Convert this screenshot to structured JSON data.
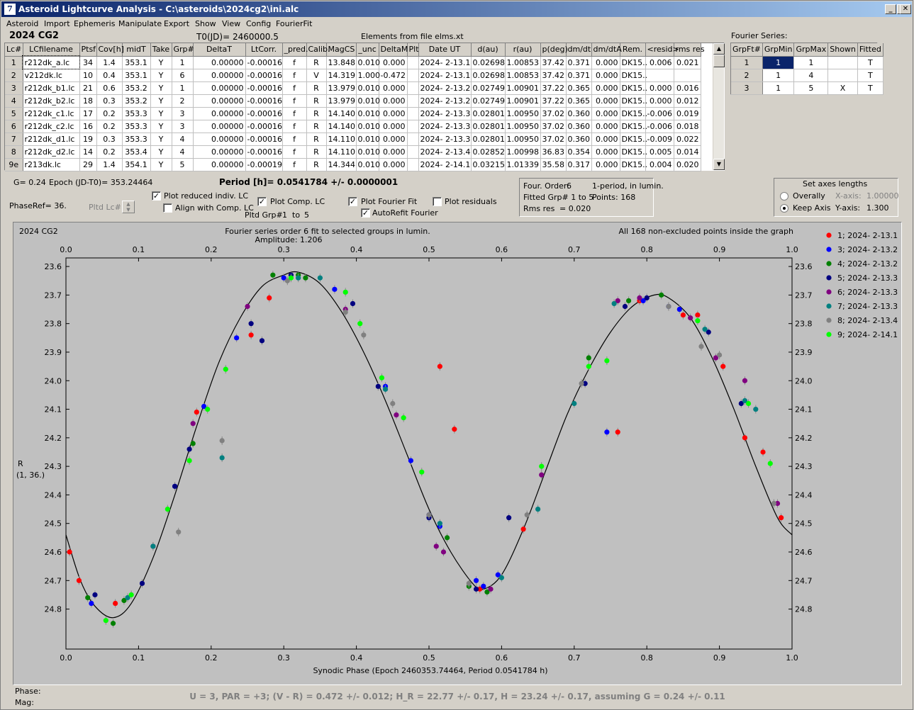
{
  "window": {
    "title": "Asteroid Lightcurve Analysis - C:\\asteroids\\2024cg2\\ini.alc",
    "icon_label": "7",
    "buttons": {
      "minimize": "_",
      "maximize": "□",
      "close": "✕"
    }
  },
  "menu": [
    "Asteroid",
    "Import",
    "Ephemeris",
    "Manipulate",
    "Export",
    "Show",
    "View",
    "Config",
    "FourierFit"
  ],
  "header": {
    "asteroid": "2024 CG2",
    "t0": "T0(JD)= 2460000.5",
    "elements": "Elements from file elms.xt",
    "fourier_series_label": "Fourier Series:"
  },
  "lc_table": {
    "columns": [
      "Lc#",
      "LCfilename",
      "Ptsf",
      "Cov[h]",
      "midT",
      "Take",
      "Grp#",
      "DeltaT",
      "LtCorr.",
      "_pred.",
      "Calib.",
      "MagCS",
      "_unc",
      "DeltaM",
      "Plt",
      "Date UT",
      "d(au)",
      "r(au)",
      "p(deg)",
      "dm/dt",
      "dm/dtA",
      "Rem.",
      "<resid>",
      "rms res"
    ],
    "rows": [
      [
        "1",
        "r212dk_a.lc",
        "34",
        "1.4",
        "353.1",
        "Y",
        "1",
        "0.00000",
        "-0.00016",
        "f",
        "R",
        "13.848",
        "0.010",
        "0.000",
        "",
        "2024- 2-13.1",
        "0.02698",
        "1.00853",
        "37.42",
        "0.371",
        "0.000",
        "DK15..",
        "0.006",
        "0.021"
      ],
      [
        "2",
        "v212dk.lc",
        "10",
        "0.4",
        "353.1",
        "Y",
        "6",
        "0.00000",
        "-0.00016",
        "f",
        "V",
        "14.319",
        "1.000",
        "-0.472",
        "",
        "2024- 2-13.1",
        "0.02698",
        "1.00853",
        "37.42",
        "0.371",
        "0.000",
        "DK15..",
        "",
        ""
      ],
      [
        "3",
        "r212dk_b1.lc",
        "21",
        "0.6",
        "353.2",
        "Y",
        "1",
        "0.00000",
        "-0.00016",
        "f",
        "R",
        "13.979",
        "0.010",
        "0.000",
        "",
        "2024- 2-13.2",
        "0.02749",
        "1.00901",
        "37.22",
        "0.365",
        "0.000",
        "DK15..",
        "0.000",
        "0.016"
      ],
      [
        "4",
        "r212dk_b2.lc",
        "18",
        "0.3",
        "353.2",
        "Y",
        "2",
        "0.00000",
        "-0.00016",
        "f",
        "R",
        "13.979",
        "0.010",
        "0.000",
        "",
        "2024- 2-13.2",
        "0.02749",
        "1.00901",
        "37.22",
        "0.365",
        "0.000",
        "DK15..",
        "0.000",
        "0.012"
      ],
      [
        "5",
        "r212dk_c1.lc",
        "17",
        "0.2",
        "353.3",
        "Y",
        "3",
        "0.00000",
        "-0.00016",
        "f",
        "R",
        "14.140",
        "0.010",
        "0.000",
        "",
        "2024- 2-13.3",
        "0.02801",
        "1.00950",
        "37.02",
        "0.360",
        "0.000",
        "DK15..",
        "-0.006",
        "0.019"
      ],
      [
        "6",
        "r212dk_c2.lc",
        "16",
        "0.2",
        "353.3",
        "Y",
        "3",
        "0.00000",
        "-0.00016",
        "f",
        "R",
        "14.140",
        "0.010",
        "0.000",
        "",
        "2024- 2-13.3",
        "0.02801",
        "1.00950",
        "37.02",
        "0.360",
        "0.000",
        "DK15..",
        "-0.006",
        "0.018"
      ],
      [
        "7",
        "r212dk_d1.lc",
        "19",
        "0.3",
        "353.3",
        "Y",
        "4",
        "0.00000",
        "-0.00016",
        "f",
        "R",
        "14.110",
        "0.010",
        "0.000",
        "",
        "2024- 2-13.3",
        "0.02801",
        "1.00950",
        "37.02",
        "0.360",
        "0.000",
        "DK15..",
        "-0.009",
        "0.022"
      ],
      [
        "8",
        "r212dk_d2.lc",
        "14",
        "0.2",
        "353.4",
        "Y",
        "4",
        "0.00000",
        "-0.00016",
        "f",
        "R",
        "14.110",
        "0.010",
        "0.000",
        "",
        "2024- 2-13.4",
        "0.02852",
        "1.00998",
        "36.83",
        "0.354",
        "0.000",
        "DK15..",
        "0.005",
        "0.014"
      ],
      [
        "9e",
        "r213dk.lc",
        "29",
        "1.4",
        "354.1",
        "Y",
        "5",
        "0.00000",
        "-0.00019",
        "f",
        "R",
        "14.344",
        "0.010",
        "0.000",
        "",
        "2024- 2-14.1",
        "0.03215",
        "1.01339",
        "35.58",
        "0.317",
        "0.000",
        "DK15..",
        "0.004",
        "0.020"
      ]
    ]
  },
  "fourier_table": {
    "columns": [
      "GrpFt#",
      "GrpMin",
      "GrpMax",
      "Shown",
      "Fitted"
    ],
    "rows": [
      [
        "1",
        "1",
        "1",
        "",
        "T"
      ],
      [
        "2",
        "1",
        "4",
        "",
        "T"
      ],
      [
        "3",
        "1",
        "5",
        "X",
        "T"
      ]
    ]
  },
  "controls": {
    "g_value": "G= 0.24",
    "epoch": "Epoch (JD-T0)= 353.24464",
    "period": "Period [h]= 0.0541784 +/- 0.0000001",
    "phaseref": "PhaseRef= 36.",
    "pltd_lc": "Pltd Lc#:",
    "plot_reduced": "Plot reduced indiv. LC",
    "align_comp": "Align with Comp. LC",
    "plot_comp": "Plot Comp. LC",
    "pltd_grp": "Pltd Grp#",
    "grp_from": "1",
    "grp_to_label": "to",
    "grp_to": "5",
    "plot_fourier": "Plot Fourier Fit",
    "autorefit": "AutoRefit Fourier",
    "plot_residuals": "Plot residuals"
  },
  "fourier_info": {
    "order_label": "Four. Order:",
    "order": "6",
    "mode": "1-period, in lumin.",
    "fitted": "Fitted Grp# 1 to 5",
    "points": "Points: 168",
    "rms_label": "Rms res",
    "rms": "= 0.020"
  },
  "axes_box": {
    "title": "Set axes lengths",
    "overall": "Overally",
    "keep": "Keep Axis",
    "x_label": "X-axis:",
    "x_value": "1.00000",
    "y_label": "Y-axis:",
    "y_value": "1.300"
  },
  "plot_header": {
    "left": "2024 CG2",
    "center1": "Fourier series order 6 fit to selected groups in lumin.",
    "center2": "Amplitude: 1.206",
    "right": "All 168 non-excluded points inside the graph",
    "ylabel1": "R",
    "ylabel2": "(1, 36.)"
  },
  "footer": {
    "phase": "Phase:",
    "mag": "Mag:",
    "status": "U = 3, PAR = +3; (V - R) = 0.472 +/- 0.012; H_R = 22.77 +/- 0.17, H = 23.24 +/- 0.17, assuming G = 0.24 +/- 0.11"
  },
  "chart_data": {
    "type": "scatter",
    "title": "Fourier series order 6 fit to selected groups in lumin.",
    "xlabel": "Synodic Phase (Epoch 2460353.74464, Period 0.0541784 h)",
    "ylabel": "R",
    "xlim": [
      0,
      1
    ],
    "ylim": [
      24.94,
      23.57
    ],
    "xticks": [
      "0.0",
      "0.1",
      "0.2",
      "0.3",
      "0.4",
      "0.5",
      "0.6",
      "0.7",
      "0.8",
      "0.9",
      "1.0"
    ],
    "yticks": [
      "23.6",
      "23.7",
      "23.8",
      "23.9",
      "24.0",
      "24.1",
      "24.2",
      "24.3",
      "24.4",
      "24.5",
      "24.6",
      "24.7",
      "24.8"
    ],
    "fit_curve": {
      "x": [
        0.0,
        0.02,
        0.04,
        0.065,
        0.09,
        0.12,
        0.15,
        0.18,
        0.21,
        0.24,
        0.27,
        0.3,
        0.32,
        0.35,
        0.38,
        0.41,
        0.44,
        0.47,
        0.5,
        0.53,
        0.56,
        0.575,
        0.6,
        0.63,
        0.66,
        0.69,
        0.72,
        0.75,
        0.78,
        0.81,
        0.83,
        0.86,
        0.89,
        0.92,
        0.95,
        0.98,
        1.0
      ],
      "y": [
        24.54,
        24.7,
        24.79,
        24.83,
        24.78,
        24.62,
        24.4,
        24.16,
        23.94,
        23.78,
        23.67,
        23.63,
        23.62,
        23.66,
        23.76,
        23.9,
        24.07,
        24.26,
        24.45,
        24.6,
        24.71,
        24.73,
        24.68,
        24.52,
        24.32,
        24.12,
        23.96,
        23.83,
        23.74,
        23.7,
        23.71,
        23.78,
        23.92,
        24.1,
        24.3,
        24.48,
        24.54
      ]
    },
    "series": [
      {
        "name": "1; 2024- 2-13.1",
        "color": "#ff0000",
        "x": [
          0.005,
          0.018,
          0.068,
          0.18,
          0.255,
          0.28,
          0.515,
          0.535,
          0.57,
          0.63,
          0.76,
          0.79,
          0.85,
          0.87,
          0.905,
          0.935,
          0.96,
          0.985
        ],
        "y": [
          24.6,
          24.7,
          24.78,
          24.11,
          23.84,
          23.71,
          23.95,
          24.17,
          24.73,
          24.52,
          24.18,
          23.72,
          23.77,
          23.77,
          23.95,
          24.2,
          24.25,
          24.48
        ]
      },
      {
        "name": "3; 2024- 2-13.2",
        "color": "#0000ff",
        "x": [
          0.035,
          0.15,
          0.19,
          0.235,
          0.3,
          0.37,
          0.44,
          0.475,
          0.5,
          0.515,
          0.565,
          0.575,
          0.595,
          0.745,
          0.795,
          0.83,
          0.845
        ],
        "y": [
          24.78,
          24.37,
          24.09,
          23.85,
          23.64,
          23.68,
          24.02,
          24.28,
          24.47,
          24.51,
          24.7,
          24.72,
          24.68,
          24.18,
          23.72,
          23.74,
          23.75
        ]
      },
      {
        "name": "4; 2024- 2-13.2",
        "color": "#008000",
        "x": [
          0.03,
          0.065,
          0.08,
          0.175,
          0.285,
          0.32,
          0.33,
          0.525,
          0.555,
          0.58,
          0.72,
          0.775,
          0.82
        ],
        "y": [
          24.76,
          24.85,
          24.77,
          24.22,
          23.63,
          23.63,
          23.64,
          24.55,
          24.72,
          24.74,
          23.92,
          23.72,
          23.7
        ]
      },
      {
        "name": "5; 2024- 2-13.3",
        "color": "#000080",
        "x": [
          0.04,
          0.105,
          0.15,
          0.17,
          0.255,
          0.27,
          0.31,
          0.395,
          0.43,
          0.5,
          0.565,
          0.61,
          0.715,
          0.77,
          0.8,
          0.885,
          0.93
        ],
        "y": [
          24.75,
          24.71,
          24.37,
          24.24,
          23.8,
          23.86,
          23.63,
          23.73,
          24.02,
          24.48,
          24.73,
          24.48,
          24.01,
          23.74,
          23.71,
          23.83,
          24.08
        ]
      },
      {
        "name": "6; 2024- 2-13.3",
        "color": "#800080",
        "x": [
          0.12,
          0.175,
          0.25,
          0.385,
          0.455,
          0.51,
          0.52,
          0.585,
          0.655,
          0.76,
          0.79,
          0.86,
          0.895,
          0.935,
          0.98
        ],
        "y": [
          24.58,
          24.15,
          23.74,
          23.75,
          24.12,
          24.58,
          24.6,
          24.73,
          24.33,
          23.72,
          23.71,
          23.78,
          23.92,
          24.0,
          24.43
        ]
      },
      {
        "name": "7; 2024- 2-13.3",
        "color": "#008080",
        "x": [
          0.085,
          0.12,
          0.215,
          0.32,
          0.35,
          0.44,
          0.515,
          0.6,
          0.65,
          0.7,
          0.755,
          0.88,
          0.935,
          0.95
        ],
        "y": [
          24.76,
          24.58,
          24.27,
          23.64,
          23.64,
          24.03,
          24.5,
          24.69,
          24.45,
          24.08,
          23.73,
          23.82,
          24.07,
          24.1
        ]
      },
      {
        "name": "8; 2024- 2-13.4",
        "color": "#808080",
        "x": [
          0.155,
          0.215,
          0.305,
          0.385,
          0.41,
          0.45,
          0.5,
          0.555,
          0.635,
          0.71,
          0.83,
          0.875,
          0.9,
          0.975
        ],
        "y": [
          24.53,
          24.21,
          23.65,
          23.76,
          23.84,
          24.08,
          24.47,
          24.71,
          24.47,
          24.01,
          23.74,
          23.88,
          23.91,
          24.43
        ]
      },
      {
        "name": "9; 2024- 2-14.1",
        "color": "#00ff00",
        "x": [
          0.055,
          0.09,
          0.14,
          0.17,
          0.195,
          0.22,
          0.31,
          0.385,
          0.405,
          0.435,
          0.465,
          0.49,
          0.655,
          0.72,
          0.745,
          0.87,
          0.94,
          0.97
        ],
        "y": [
          24.84,
          24.75,
          24.45,
          24.28,
          24.1,
          23.96,
          23.64,
          23.69,
          23.8,
          23.99,
          24.13,
          24.32,
          24.3,
          23.95,
          23.93,
          23.79,
          24.08,
          24.29
        ]
      }
    ],
    "legend_position": "right"
  }
}
